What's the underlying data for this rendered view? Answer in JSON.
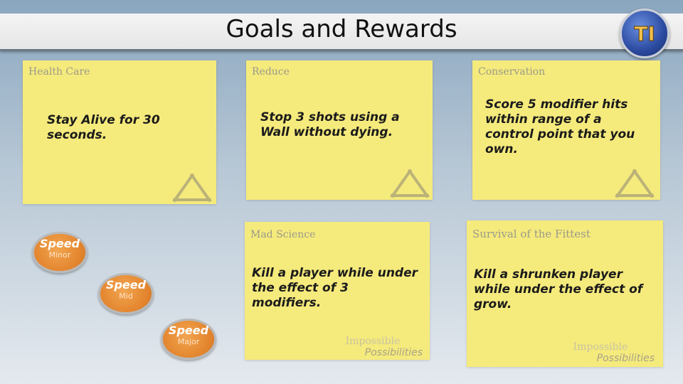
{
  "slide": {
    "title": "Goals and Rewards"
  },
  "logo": {
    "icon": "game-logo-icon",
    "text": "TI"
  },
  "cards": [
    {
      "title": "Health Care",
      "text": "Stay Alive for 30 seconds."
    },
    {
      "title": "Reduce",
      "text": "Stop 3 shots using a Wall without dying."
    },
    {
      "title": "Conservation",
      "text": "Score 5 modifier hits within range of a control point that you own."
    },
    {
      "title": "Mad Science",
      "text": "Kill a player while under the effect of 3 modifiers.",
      "watermark": [
        "Impossible",
        "Possibilities"
      ]
    },
    {
      "title": "Survival of the Fittest",
      "text": "Kill a shrunken player while under the effect of grow.",
      "watermark": [
        "Impossible",
        "Possibilities"
      ]
    }
  ],
  "badges": [
    {
      "label": "Speed",
      "level": "Minor"
    },
    {
      "label": "Speed",
      "level": "Mid"
    },
    {
      "label": "Speed",
      "level": "Major"
    }
  ],
  "colors": {
    "note": "#f5ea7c",
    "badge": "#e2832c",
    "title_bar": "#e9e9e9"
  }
}
